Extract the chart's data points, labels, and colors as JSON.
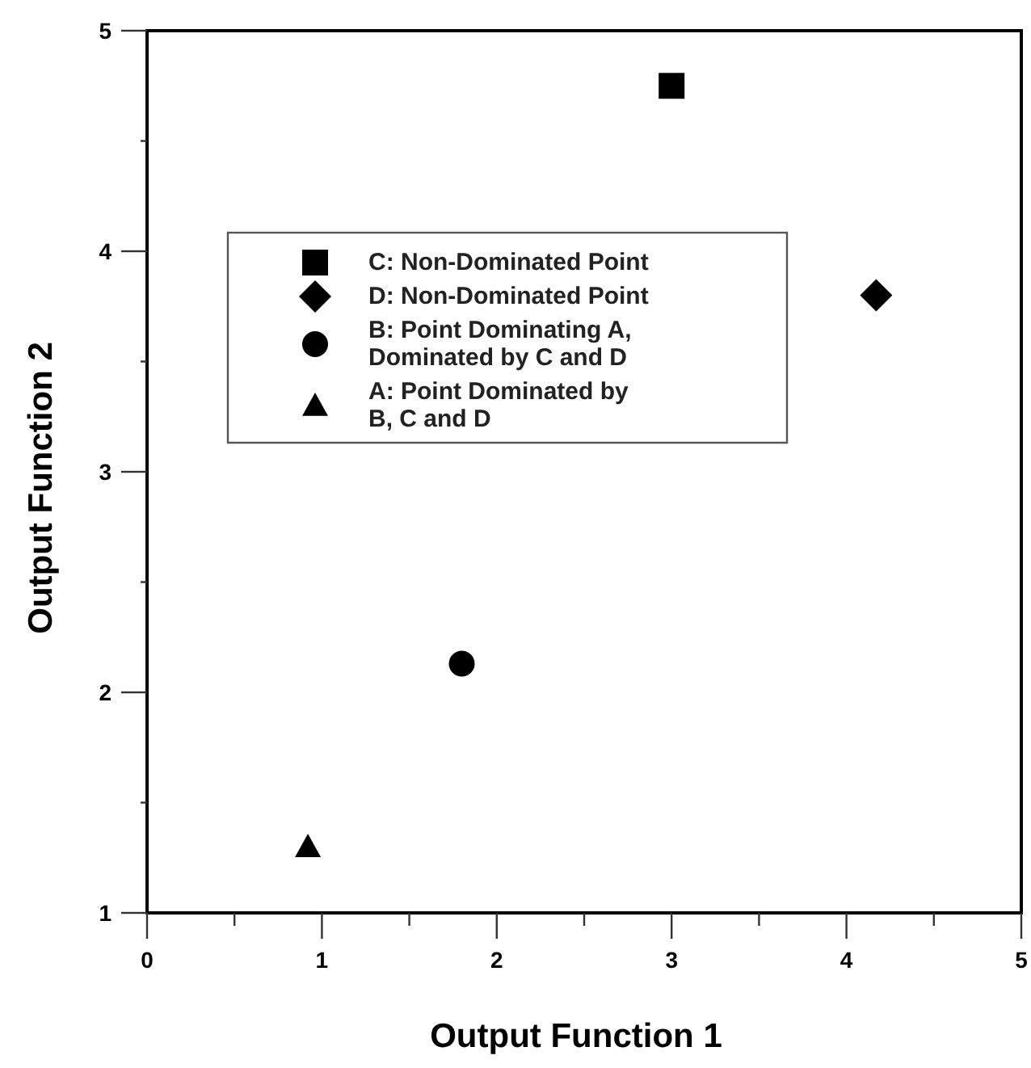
{
  "chart_data": {
    "type": "scatter",
    "xlabel": "Output Function 1",
    "ylabel": "Output Function 2",
    "xlim": [
      0,
      5
    ],
    "ylim": [
      1,
      5
    ],
    "xticks": [
      0,
      {
        "value": 0.5,
        "label": null
      },
      1,
      {
        "value": 1.5,
        "label": null
      },
      2,
      {
        "value": 2.5,
        "label": null
      },
      3,
      {
        "value": 3.5,
        "label": null
      },
      4,
      {
        "value": 4.5,
        "label": null
      },
      5
    ],
    "yticks": [
      1,
      {
        "value": 1.5,
        "label": null
      },
      2,
      {
        "value": 2.5,
        "label": null
      },
      3,
      {
        "value": 3.5,
        "label": null
      },
      4,
      {
        "value": 4.5,
        "label": null
      },
      5
    ],
    "grid": false,
    "legend": "top left",
    "series": [
      {
        "name": "C: Non-Dominated Point",
        "color": "#000000",
        "marker": "square",
        "x": [
          3.0
        ],
        "values": [
          4.75
        ]
      },
      {
        "name": "D: Non-Dominated Point",
        "color": "#000000",
        "marker": "diamond",
        "x": [
          4.17
        ],
        "values": [
          3.8
        ]
      },
      {
        "name": "B: Point Dominating A, Dominated by C and D",
        "color": "#000000",
        "marker": "circle",
        "x": [
          1.8
        ],
        "values": [
          2.13
        ]
      },
      {
        "name": "A: Point Dominated by B, C and D",
        "color": "#000000",
        "marker": "triangle",
        "x": [
          0.92
        ],
        "values": [
          1.3
        ]
      }
    ]
  }
}
